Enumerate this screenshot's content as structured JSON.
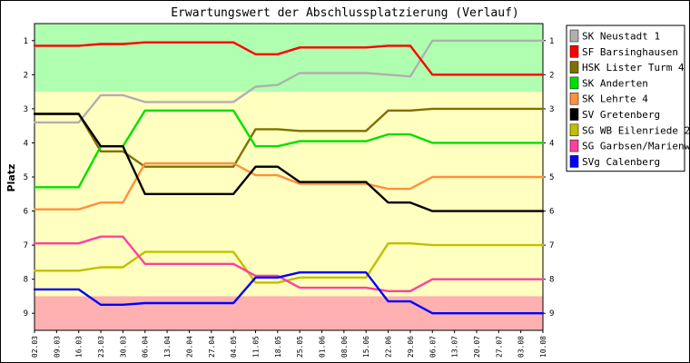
{
  "chart_data": {
    "type": "line",
    "title": "Erwartungswert der Abschlussplatzierung (Verlauf)",
    "ylabel": "Platz",
    "xlabel": "",
    "ylim": [
      0.5,
      9.5
    ],
    "y_inverted": true,
    "y_ticks": [
      "1",
      "2",
      "3",
      "4",
      "5",
      "6",
      "7",
      "8",
      "9"
    ],
    "grid": false,
    "legend_position": "right",
    "x": [
      "02.03",
      "09.03",
      "16.03",
      "23.03",
      "30.03",
      "06.04",
      "13.04",
      "20.04",
      "27.04",
      "04.05",
      "11.05",
      "18.05",
      "25.05",
      "01.06",
      "08.06",
      "15.06",
      "22.06",
      "29.06",
      "06.07",
      "13.07",
      "20.07",
      "27.07",
      "03.08",
      "10.08"
    ],
    "bands": [
      {
        "from": 0.5,
        "to": 2.5,
        "color": "#b0ffb0"
      },
      {
        "from": 2.5,
        "to": 8.5,
        "color": "#ffffc0"
      },
      {
        "from": 8.5,
        "to": 9.5,
        "color": "#ffb0b0"
      }
    ],
    "series": [
      {
        "name": "SK Neustadt 1",
        "color": "#b0b0b0",
        "values": [
          3.4,
          3.4,
          3.4,
          2.6,
          2.6,
          2.8,
          2.8,
          2.8,
          2.8,
          2.8,
          2.35,
          2.3,
          1.95,
          1.95,
          1.95,
          1.95,
          2.0,
          2.05,
          1.0,
          1.0,
          1.0,
          1.0,
          1.0,
          1.0
        ]
      },
      {
        "name": "SF Barsinghausen",
        "color": "#ff0000",
        "values": [
          1.15,
          1.15,
          1.15,
          1.1,
          1.1,
          1.05,
          1.05,
          1.05,
          1.05,
          1.05,
          1.4,
          1.4,
          1.2,
          1.2,
          1.2,
          1.2,
          1.15,
          1.15,
          2.0,
          2.0,
          2.0,
          2.0,
          2.0,
          2.0
        ]
      },
      {
        "name": "HSK Lister Turm 4",
        "color": "#807000",
        "values": [
          3.15,
          3.15,
          3.15,
          4.25,
          4.25,
          4.7,
          4.7,
          4.7,
          4.7,
          4.7,
          3.6,
          3.6,
          3.65,
          3.65,
          3.65,
          3.65,
          3.05,
          3.05,
          3.0,
          3.0,
          3.0,
          3.0,
          3.0,
          3.0
        ]
      },
      {
        "name": "SK Anderten",
        "color": "#00e000",
        "values": [
          5.3,
          5.3,
          5.3,
          4.1,
          4.1,
          3.05,
          3.05,
          3.05,
          3.05,
          3.05,
          4.1,
          4.1,
          3.95,
          3.95,
          3.95,
          3.95,
          3.75,
          3.75,
          4.0,
          4.0,
          4.0,
          4.0,
          4.0,
          4.0
        ]
      },
      {
        "name": "SK Lehrte 4",
        "color": "#ff9040",
        "values": [
          5.95,
          5.95,
          5.95,
          5.75,
          5.75,
          4.6,
          4.6,
          4.6,
          4.6,
          4.6,
          4.95,
          4.95,
          5.2,
          5.2,
          5.2,
          5.2,
          5.35,
          5.35,
          5.0,
          5.0,
          5.0,
          5.0,
          5.0,
          5.0
        ]
      },
      {
        "name": "SV Gretenberg",
        "color": "#000000",
        "values": [
          3.15,
          3.15,
          3.15,
          4.1,
          4.1,
          5.5,
          5.5,
          5.5,
          5.5,
          5.5,
          4.7,
          4.7,
          5.15,
          5.15,
          5.15,
          5.15,
          5.75,
          5.75,
          6.0,
          6.0,
          6.0,
          6.0,
          6.0,
          6.0
        ]
      },
      {
        "name": "SG WB Eilenriede 2",
        "color": "#c0c000",
        "values": [
          7.75,
          7.75,
          7.75,
          7.65,
          7.65,
          7.2,
          7.2,
          7.2,
          7.2,
          7.2,
          8.1,
          8.1,
          7.95,
          7.95,
          7.95,
          7.95,
          6.95,
          6.95,
          7.0,
          7.0,
          7.0,
          7.0,
          7.0,
          7.0
        ]
      },
      {
        "name": "SG Garbsen/Marienw",
        "color": "#ff40a0",
        "values": [
          6.95,
          6.95,
          6.95,
          6.75,
          6.75,
          7.55,
          7.55,
          7.55,
          7.55,
          7.55,
          7.9,
          7.9,
          8.25,
          8.25,
          8.25,
          8.25,
          8.35,
          8.35,
          8.0,
          8.0,
          8.0,
          8.0,
          8.0,
          8.0
        ]
      },
      {
        "name": "SVg Calenberg",
        "color": "#0000ff",
        "values": [
          8.3,
          8.3,
          8.3,
          8.75,
          8.75,
          8.7,
          8.7,
          8.7,
          8.7,
          8.7,
          7.95,
          7.95,
          7.8,
          7.8,
          7.8,
          7.8,
          8.65,
          8.65,
          9.0,
          9.0,
          9.0,
          9.0,
          9.0,
          9.0
        ]
      }
    ]
  }
}
